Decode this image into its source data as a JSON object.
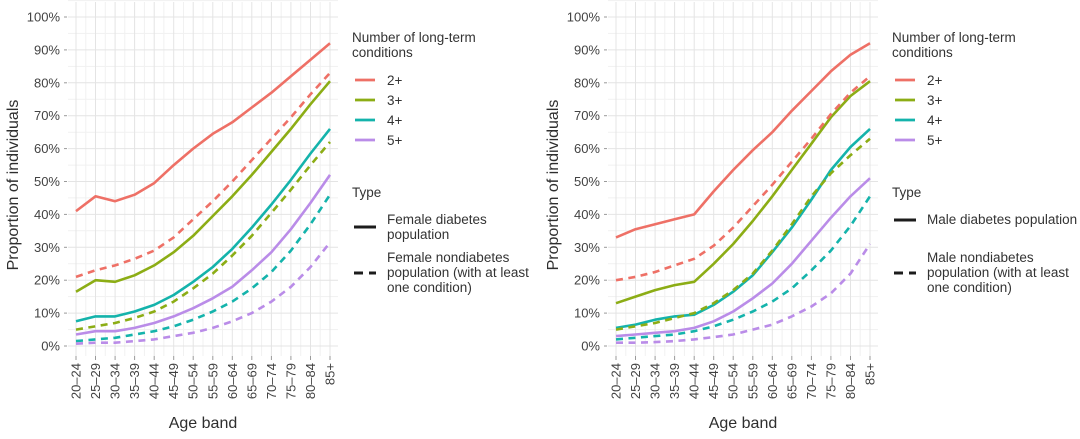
{
  "figure": {
    "xlabel": "Age band",
    "ylabel": "Proportion of individuals"
  },
  "legend": {
    "conditions_title": "Number of long-term conditions",
    "items": [
      {
        "label": "2+",
        "color": "#ee7066"
      },
      {
        "label": "3+",
        "color": "#8cad15"
      },
      {
        "label": "4+",
        "color": "#14b3ab"
      },
      {
        "label": "5+",
        "color": "#ba8ce8"
      }
    ],
    "type_title": "Type",
    "type_key_color": "#1c1c1c",
    "female": {
      "solid_label": "Female diabetes population",
      "dashed_label": "Female nondiabetes population (with at least one condition)"
    },
    "male": {
      "solid_label": "Male diabetes population",
      "dashed_label": "Male nondiabetes population (with at least one condition)"
    }
  },
  "chart_data": [
    {
      "type": "line",
      "panel": "Female",
      "xlabel": "Age band",
      "ylabel": "Proportion of individuals",
      "ylim": [
        0,
        100
      ],
      "yticks": [
        0,
        10,
        20,
        30,
        40,
        50,
        60,
        70,
        80,
        90,
        100
      ],
      "ytick_format": "percent",
      "grid": "major+minor",
      "legend_position": "right",
      "categories": [
        "20–24",
        "25–29",
        "30–34",
        "35–39",
        "40–44",
        "45–49",
        "50–54",
        "55–59",
        "60–64",
        "65–69",
        "70–74",
        "75–79",
        "80–84",
        "85+"
      ],
      "series": [
        {
          "id": "2plus-female-diabetes",
          "conditions": "2+",
          "line": "solid",
          "type_label": "Female diabetes population",
          "color": "#ee7066",
          "values": [
            41,
            45.5,
            44,
            46,
            49.5,
            55,
            60,
            64.5,
            68,
            72.5,
            77,
            82,
            87,
            92
          ]
        },
        {
          "id": "3plus-female-diabetes",
          "conditions": "3+",
          "line": "solid",
          "type_label": "Female diabetes population",
          "color": "#8cad15",
          "values": [
            16.5,
            20,
            19.5,
            21.5,
            24.5,
            28.5,
            33.5,
            39.5,
            45.5,
            52,
            59,
            66,
            73.5,
            80.5
          ]
        },
        {
          "id": "4plus-female-diabetes",
          "conditions": "4+",
          "line": "solid",
          "type_label": "Female diabetes population",
          "color": "#14b3ab",
          "values": [
            7.5,
            9,
            9,
            10.5,
            12.5,
            15.5,
            19.5,
            24,
            29.5,
            36,
            43,
            50.5,
            58.5,
            66
          ]
        },
        {
          "id": "5plus-female-diabetes",
          "conditions": "5+",
          "line": "solid",
          "type_label": "Female diabetes population",
          "color": "#ba8ce8",
          "values": [
            3.5,
            4.5,
            4.5,
            5.5,
            7,
            9,
            11.5,
            14.5,
            18,
            23,
            28.5,
            35.5,
            43.5,
            52
          ]
        },
        {
          "id": "2plus-female-nondiabetes",
          "conditions": "2+",
          "line": "dashed",
          "type_label": "Female nondiabetes population (with at least one condition)",
          "color": "#ee7066",
          "values": [
            21,
            23,
            24.5,
            26.5,
            29,
            33,
            38.5,
            44,
            50,
            56.5,
            63,
            69.5,
            76.5,
            83
          ]
        },
        {
          "id": "3plus-female-nondiabetes",
          "conditions": "3+",
          "line": "dashed",
          "type_label": "Female nondiabetes population (with at least one condition)",
          "color": "#8cad15",
          "values": [
            5,
            6,
            7,
            8.5,
            10.5,
            13.5,
            17.5,
            22,
            27.5,
            33.5,
            40.5,
            47.5,
            55,
            62
          ]
        },
        {
          "id": "4plus-female-nondiabetes",
          "conditions": "4+",
          "line": "dashed",
          "type_label": "Female nondiabetes population (with at least one condition)",
          "color": "#14b3ab",
          "values": [
            1.5,
            2,
            2.5,
            3.5,
            4.5,
            6,
            8,
            10.5,
            13.5,
            17.5,
            22.5,
            29,
            37,
            46
          ]
        },
        {
          "id": "5plus-female-nondiabetes",
          "conditions": "5+",
          "line": "dashed",
          "type_label": "Female nondiabetes population (with at least one condition)",
          "color": "#ba8ce8",
          "values": [
            0.7,
            1,
            1,
            1.5,
            2,
            3,
            4,
            5.5,
            7.5,
            10,
            13.5,
            18,
            24,
            31.5
          ]
        }
      ]
    },
    {
      "type": "line",
      "panel": "Male",
      "xlabel": "Age band",
      "ylabel": "Proportion of individuals",
      "ylim": [
        0,
        100
      ],
      "yticks": [
        0,
        10,
        20,
        30,
        40,
        50,
        60,
        70,
        80,
        90,
        100
      ],
      "ytick_format": "percent",
      "grid": "major+minor",
      "legend_position": "right",
      "categories": [
        "20–24",
        "25–29",
        "30–34",
        "35–39",
        "40–44",
        "45–49",
        "50–54",
        "55–59",
        "60–64",
        "65–69",
        "70–74",
        "75–79",
        "80–84",
        "85+"
      ],
      "series": [
        {
          "id": "2plus-male-diabetes",
          "conditions": "2+",
          "line": "solid",
          "type_label": "Male diabetes population",
          "color": "#ee7066",
          "values": [
            33,
            35.5,
            37,
            38.5,
            40,
            47,
            53.5,
            59.5,
            65,
            71.5,
            77.5,
            83.5,
            88.5,
            92
          ]
        },
        {
          "id": "3plus-male-diabetes",
          "conditions": "3+",
          "line": "solid",
          "type_label": "Male diabetes population",
          "color": "#8cad15",
          "values": [
            13,
            15,
            17,
            18.5,
            19.5,
            25,
            31,
            38,
            45.5,
            53.5,
            61.5,
            69.5,
            76,
            80.5
          ]
        },
        {
          "id": "4plus-male-diabetes",
          "conditions": "4+",
          "line": "solid",
          "type_label": "Male diabetes population",
          "color": "#14b3ab",
          "values": [
            5.5,
            6.5,
            8,
            9,
            9.5,
            12.5,
            16.5,
            21.5,
            28.5,
            36,
            44.5,
            53.5,
            60.5,
            66
          ]
        },
        {
          "id": "5plus-male-diabetes",
          "conditions": "5+",
          "line": "solid",
          "type_label": "Male diabetes population",
          "color": "#ba8ce8",
          "values": [
            3,
            3.5,
            4,
            4.5,
            5.5,
            7.5,
            10.5,
            14.5,
            19,
            25,
            32,
            39,
            45.5,
            51
          ]
        },
        {
          "id": "2plus-male-nondiabetes",
          "conditions": "2+",
          "line": "dashed",
          "type_label": "Male nondiabetes population (with at least one condition)",
          "color": "#ee7066",
          "values": [
            20,
            21,
            22.5,
            24.5,
            26.5,
            30.5,
            36,
            42.5,
            49,
            56,
            63,
            70.5,
            77,
            82
          ]
        },
        {
          "id": "3plus-male-nondiabetes",
          "conditions": "3+",
          "line": "dashed",
          "type_label": "Male nondiabetes population (with at least one condition)",
          "color": "#8cad15",
          "values": [
            5,
            6,
            7,
            8.5,
            10,
            13,
            17,
            22,
            29,
            37,
            45.5,
            52.5,
            58,
            63
          ]
        },
        {
          "id": "4plus-male-nondiabetes",
          "conditions": "4+",
          "line": "dashed",
          "type_label": "Male nondiabetes population (with at least one condition)",
          "color": "#14b3ab",
          "values": [
            2,
            2.5,
            3,
            3.5,
            4.5,
            6,
            8,
            10.5,
            13.5,
            17.5,
            23,
            29,
            36.5,
            45.5
          ]
        },
        {
          "id": "5plus-male-nondiabetes",
          "conditions": "5+",
          "line": "dashed",
          "type_label": "Male nondiabetes population (with at least one condition)",
          "color": "#ba8ce8",
          "values": [
            1,
            1,
            1.2,
            1.5,
            2,
            2.7,
            3.5,
            5,
            6.5,
            9,
            12,
            16,
            22,
            31
          ]
        }
      ]
    }
  ]
}
